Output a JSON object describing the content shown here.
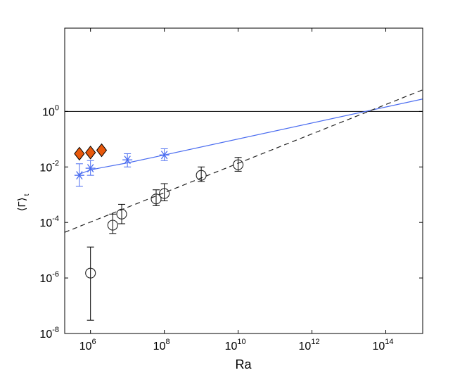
{
  "chart_data": {
    "type": "scatter",
    "xlabel": "Ra",
    "ylabel": "⟨Γ⟩",
    "ylabel_subscript": "t",
    "xscale": "log",
    "yscale": "log",
    "xlim": [
      200000,
      1000000000000000.0
    ],
    "ylim": [
      1e-08,
      1000.0
    ],
    "x_ticks": [
      {
        "value": 1000000.0,
        "base": "10",
        "exp": "6"
      },
      {
        "value": 100000000.0,
        "base": "10",
        "exp": "8"
      },
      {
        "value": 10000000000.0,
        "base": "10",
        "exp": "10"
      },
      {
        "value": 1000000000000.0,
        "base": "10",
        "exp": "12"
      },
      {
        "value": 100000000000000.0,
        "base": "10",
        "exp": "14"
      }
    ],
    "y_ticks": [
      {
        "value": 1e-08,
        "base": "10",
        "exp": "-8"
      },
      {
        "value": 1e-06,
        "base": "10",
        "exp": "-6"
      },
      {
        "value": 0.0001,
        "base": "10",
        "exp": "-4"
      },
      {
        "value": 0.01,
        "base": "10",
        "exp": "-2"
      },
      {
        "value": 1,
        "base": "10",
        "exp": "0"
      }
    ],
    "grid": false,
    "reference_line_y": 1,
    "series": [
      {
        "marker": "diamond",
        "color": "#e8590c",
        "points": [
          {
            "x": 500000,
            "y": 0.03
          },
          {
            "x": 1000000,
            "y": 0.033
          },
          {
            "x": 2000000,
            "y": 0.04
          }
        ]
      },
      {
        "marker": "asterisk",
        "color": "#4a6cf0",
        "points": [
          {
            "x": 500000,
            "y": 0.005,
            "ylo": 0.002,
            "yhi": 0.013
          },
          {
            "x": 1000000,
            "y": 0.009,
            "ylo": 0.005,
            "yhi": 0.017
          },
          {
            "x": 10000000,
            "y": 0.018,
            "ylo": 0.01,
            "yhi": 0.03
          },
          {
            "x": 100000000,
            "y": 0.027,
            "ylo": 0.017,
            "yhi": 0.045
          }
        ],
        "fit": [
          {
            "x": 500000,
            "y": 0.0055
          },
          {
            "x": 1000000,
            "y": 0.0078
          },
          {
            "x": 2000000,
            "y": 0.0094
          },
          {
            "x": 10000000,
            "y": 0.014
          },
          {
            "x": 100000000,
            "y": 0.027
          },
          {
            "x": 1000000000000000.0,
            "y": 2.8
          }
        ]
      },
      {
        "marker": "circle",
        "color": "#000000",
        "points": [
          {
            "x": 1000000,
            "y": 1.5e-06,
            "ylo": 3e-08,
            "yhi": 1.3e-05
          },
          {
            "x": 4000000,
            "y": 8e-05,
            "ylo": 4e-05,
            "yhi": 0.0002
          },
          {
            "x": 7000000,
            "y": 0.0002,
            "ylo": 9e-05,
            "yhi": 0.00045
          },
          {
            "x": 60000000,
            "y": 0.0007,
            "ylo": 0.0004,
            "yhi": 0.0015
          },
          {
            "x": 100000000,
            "y": 0.0011,
            "ylo": 0.0006,
            "yhi": 0.0025
          },
          {
            "x": 1000000000,
            "y": 0.005,
            "ylo": 0.003,
            "yhi": 0.01
          },
          {
            "x": 10000000000,
            "y": 0.012,
            "ylo": 0.007,
            "yhi": 0.022
          }
        ],
        "fit": [
          {
            "x": 200000,
            "y": 4.4e-05
          },
          {
            "x": 1000000000000000.0,
            "y": 6.0
          }
        ],
        "fit_style": "dashed"
      }
    ]
  }
}
